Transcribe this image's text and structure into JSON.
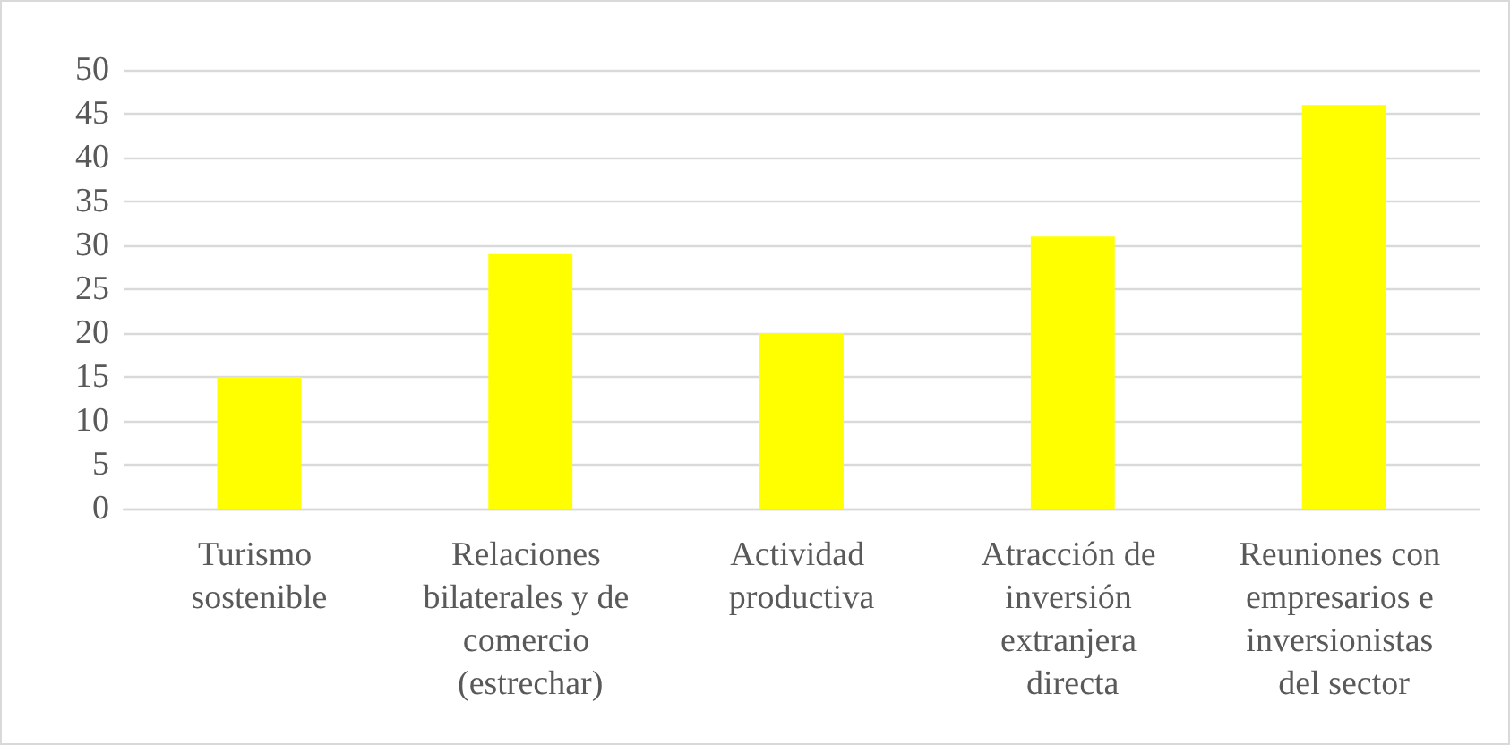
{
  "chart_data": {
    "type": "bar",
    "categories": [
      "Turismo sostenible",
      "Relaciones bilaterales y de comercio (estrechar)",
      "Actividad productiva",
      "Atracción de inversión extranjera directa",
      "Reuniones con empresarios e inversionistas del sector"
    ],
    "values": [
      15,
      29,
      20,
      31,
      46
    ],
    "color": "#ffff00",
    "ylim": [
      0,
      50
    ],
    "yticks": [
      0,
      5,
      10,
      15,
      20,
      25,
      30,
      35,
      40,
      45,
      50
    ],
    "grid": "y"
  }
}
